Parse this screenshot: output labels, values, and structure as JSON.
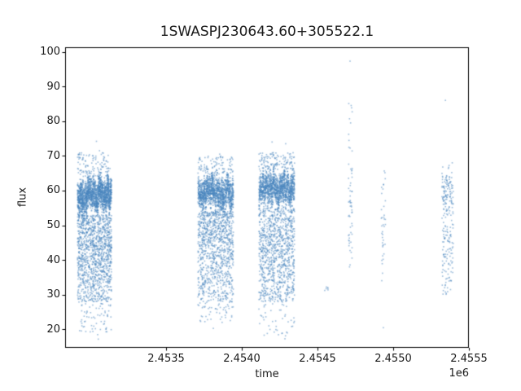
{
  "chart_data": {
    "type": "scatter",
    "title": "1SWASPJ230643.60+305522.1",
    "xlabel": "time",
    "ylabel": "flux",
    "x_offset_label": "1e6",
    "grid": false,
    "legend": null,
    "marker_color": "#4a86c0",
    "axis_color": "#000000",
    "background": "#ffffff",
    "xlim": [
      2452833,
      2455500
    ],
    "ylim": [
      14.7,
      101.3
    ],
    "xticks": [
      2453500,
      2454000,
      2454500,
      2455000,
      2455500
    ],
    "xtick_labels": [
      "2.4535",
      "2.4540",
      "2.4545",
      "2.4550",
      "2.4555"
    ],
    "yticks": [
      20,
      30,
      40,
      50,
      60,
      70,
      80,
      90,
      100
    ],
    "ytick_labels": [
      "20",
      "30",
      "40",
      "50",
      "60",
      "70",
      "80",
      "90",
      "100"
    ],
    "clusters": [
      {
        "name": "season-1",
        "t_range": [
          2452915,
          2453140
        ],
        "count": 3200,
        "bands": [
          {
            "flux": [
              53,
              64
            ],
            "weight": 0.56,
            "shape": "center"
          },
          {
            "flux": [
              38,
              53
            ],
            "weight": 0.26,
            "shape": "uniform"
          },
          {
            "flux": [
              28,
              38
            ],
            "weight": 0.13,
            "shape": "uniform"
          },
          {
            "flux": [
              19,
              28
            ],
            "weight": 0.02,
            "shape": "uniform"
          },
          {
            "flux": [
              64,
              71
            ],
            "weight": 0.03,
            "shape": "uniform"
          }
        ],
        "outliers": [
          [
            2453040,
            74.2
          ],
          [
            2453048,
            18.5
          ],
          [
            2453052,
            17.2
          ],
          [
            2453060,
            71.5
          ]
        ]
      },
      {
        "name": "season-2",
        "t_range": [
          2453710,
          2453945
        ],
        "count": 2600,
        "bands": [
          {
            "flux": [
              54,
              65
            ],
            "weight": 0.56,
            "shape": "center"
          },
          {
            "flux": [
              40,
              54
            ],
            "weight": 0.26,
            "shape": "uniform"
          },
          {
            "flux": [
              28,
              40
            ],
            "weight": 0.12,
            "shape": "uniform"
          },
          {
            "flux": [
              22,
              28
            ],
            "weight": 0.02,
            "shape": "uniform"
          },
          {
            "flux": [
              65,
              70
            ],
            "weight": 0.04,
            "shape": "uniform"
          }
        ],
        "outliers": [
          [
            2453812,
            20.3
          ],
          [
            2453854,
            70.5
          ],
          [
            2453760,
            27.5
          ]
        ]
      },
      {
        "name": "season-3",
        "t_range": [
          2454113,
          2454349
        ],
        "count": 2600,
        "bands": [
          {
            "flux": [
              55,
              66
            ],
            "weight": 0.55,
            "shape": "center"
          },
          {
            "flux": [
              38,
              55
            ],
            "weight": 0.26,
            "shape": "uniform"
          },
          {
            "flux": [
              28,
              38
            ],
            "weight": 0.12,
            "shape": "uniform"
          },
          {
            "flux": [
              18,
              28
            ],
            "weight": 0.02,
            "shape": "uniform"
          },
          {
            "flux": [
              66,
              71
            ],
            "weight": 0.05,
            "shape": "uniform"
          }
        ],
        "outliers": [
          [
            2454200,
            74.0
          ],
          [
            2454290,
            73.5
          ],
          [
            2454285,
            17.3
          ],
          [
            2454300,
            19.0
          ]
        ]
      },
      {
        "name": "small-group",
        "t_range": [
          2454545,
          2454575
        ],
        "count": 6,
        "bands": [
          {
            "flux": [
              30.8,
              32.4
            ],
            "weight": 1.0,
            "shape": "uniform"
          }
        ],
        "outliers": []
      },
      {
        "name": "sparse-column-1",
        "t_range": [
          2454705,
          2454730
        ],
        "count": 60,
        "bands": [
          {
            "flux": [
              60,
              86
            ],
            "weight": 0.42,
            "shape": "uniform"
          },
          {
            "flux": [
              38,
              60
            ],
            "weight": 0.58,
            "shape": "uniform"
          }
        ],
        "outliers": [
          [
            2454715,
            97.3
          ]
        ]
      },
      {
        "name": "sparse-column-2",
        "t_range": [
          2454920,
          2454950
        ],
        "count": 38,
        "bands": [
          {
            "flux": [
              44,
              66
            ],
            "weight": 0.8,
            "shape": "uniform"
          },
          {
            "flux": [
              34,
              44
            ],
            "weight": 0.2,
            "shape": "uniform"
          }
        ],
        "outliers": [
          [
            2454935,
            20.5
          ]
        ]
      },
      {
        "name": "season-4",
        "t_range": [
          2455322,
          2455397
        ],
        "count": 230,
        "bands": [
          {
            "flux": [
              50,
              67
            ],
            "weight": 0.55,
            "shape": "center"
          },
          {
            "flux": [
              38,
              50
            ],
            "weight": 0.3,
            "shape": "uniform"
          },
          {
            "flux": [
              30,
              38
            ],
            "weight": 0.15,
            "shape": "uniform"
          }
        ],
        "outliers": [
          [
            2455345,
            86.0
          ],
          [
            2455390,
            68.0
          ]
        ]
      }
    ]
  }
}
